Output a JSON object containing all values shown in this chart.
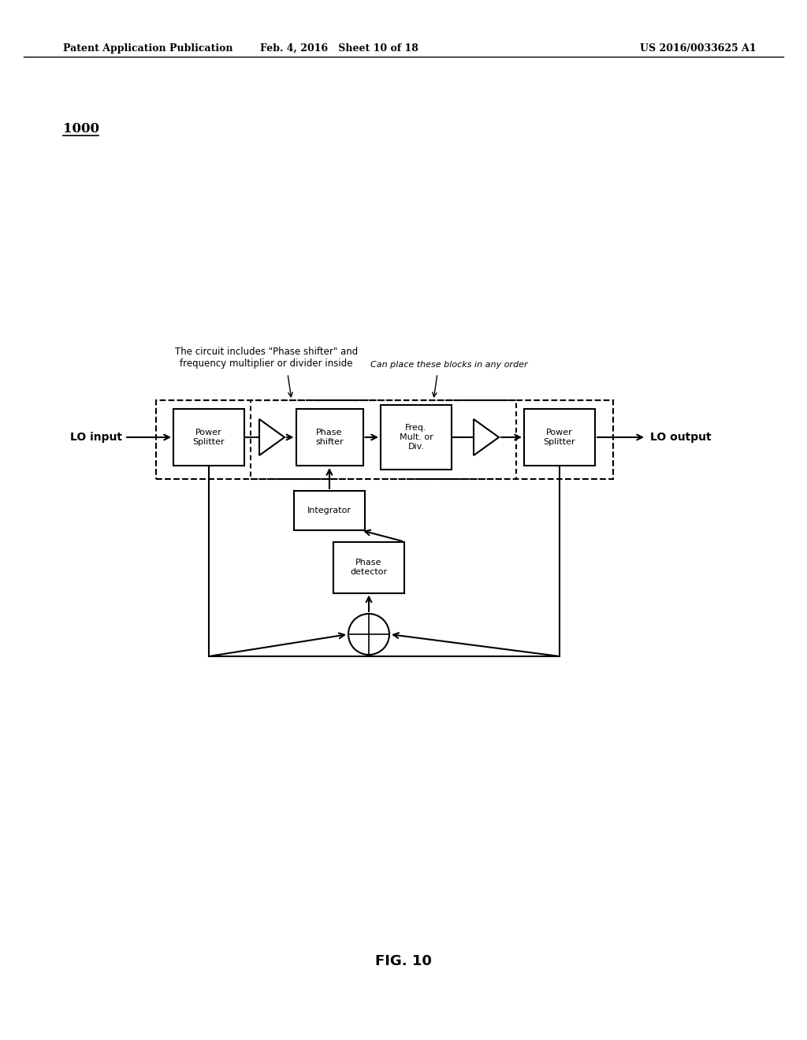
{
  "bg_color": "#ffffff",
  "fig_label": "1000",
  "header_left": "Patent Application Publication",
  "header_mid": "Feb. 4, 2016   Sheet 10 of 18",
  "header_right": "US 2016/0033625 A1",
  "fig_caption": "FIG. 10",
  "lo_input_label": "LO input",
  "lo_output_label": "LO output",
  "annotation1": "The circuit includes \"Phase shifter\" and\nfrequency multiplier or divider inside",
  "annotation2": "Can place these blocks in any order"
}
